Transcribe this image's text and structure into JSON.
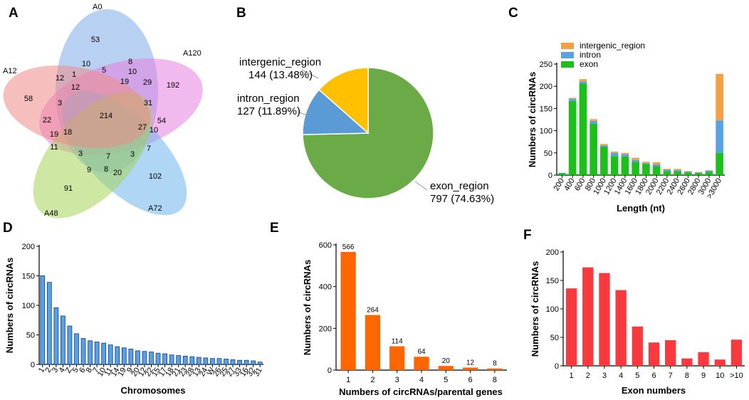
{
  "chart_data": [
    {
      "panel": "A",
      "type": "venn",
      "sets": [
        "A0",
        "A120",
        "A72",
        "A48",
        "A12"
      ],
      "regions": [
        {
          "sets": [
            "A0"
          ],
          "value": 53
        },
        {
          "sets": [
            "A120"
          ],
          "value": 192
        },
        {
          "sets": [
            "A72"
          ],
          "value": 102
        },
        {
          "sets": [
            "A48"
          ],
          "value": 91
        },
        {
          "sets": [
            "A12"
          ],
          "value": 58
        },
        {
          "sets": [
            "A0",
            "A12"
          ],
          "value": 10
        },
        {
          "sets": [
            "A0",
            "A120"
          ],
          "value": 8
        },
        {
          "sets": [
            "A12",
            "A0",
            "A120"
          ],
          "value": 12
        },
        {
          "sets": [
            "A0",
            "A12",
            "A72"
          ],
          "value": 1
        },
        {
          "sets": [
            "A0",
            "A120",
            "A12",
            "A72"
          ],
          "value": 5
        },
        {
          "sets": [
            "A0",
            "A120",
            "A72"
          ],
          "value": 10
        },
        {
          "sets": [
            "A0",
            "A12",
            "A120",
            "A48"
          ],
          "value": 12
        },
        {
          "sets": [
            "A0",
            "A120",
            "A72",
            "A48"
          ],
          "value": 19
        },
        {
          "sets": [
            "A120",
            "A72"
          ],
          "value": 29
        },
        {
          "sets": [
            "A12",
            "A120"
          ],
          "value": 3
        },
        {
          "sets": [
            "A120",
            "A72",
            "A12"
          ],
          "value": 31
        },
        {
          "sets": [
            "A0",
            "A120",
            "A72",
            "A48",
            "A12"
          ],
          "value": 214
        },
        {
          "sets": [
            "A120",
            "A72",
            "A48",
            "A12"
          ],
          "value": 27
        },
        {
          "sets": [
            "A120",
            "A72",
            "A48"
          ],
          "value": 10
        },
        {
          "sets": [
            "A72",
            "A120",
            "A48"
          ],
          "value": 54
        },
        {
          "sets": [
            "A12",
            "A48",
            "A0"
          ],
          "value": 22
        },
        {
          "sets": [
            "A12",
            "A48",
            "A0",
            "A120"
          ],
          "value": 18
        },
        {
          "sets": [
            "A12",
            "A48",
            "A120"
          ],
          "value": 19
        },
        {
          "sets": [
            "A12",
            "A48"
          ],
          "value": 11
        },
        {
          "sets": [
            "A48",
            "A12",
            "A72"
          ],
          "value": 3
        },
        {
          "sets": [
            "A48",
            "A72",
            "A0"
          ],
          "value": 7
        },
        {
          "sets": [
            "A48",
            "A72",
            "A12",
            "A0"
          ],
          "value": 3
        },
        {
          "sets": [
            "A72",
            "A120",
            "A0"
          ],
          "value": 7
        },
        {
          "sets": [
            "A48",
            "A0"
          ],
          "value": 9
        },
        {
          "sets": [
            "A48",
            "A72",
            "A12"
          ],
          "value": 8
        },
        {
          "sets": [
            "A48",
            "A72"
          ],
          "value": 20
        }
      ]
    },
    {
      "panel": "B",
      "type": "pie",
      "slices": [
        {
          "name": "exon_region",
          "value": 797,
          "label_text": "797 (74.63%)",
          "color": "#6aaa47"
        },
        {
          "name": "intron_region",
          "value": 127,
          "label_text": "127 (11.89%)",
          "color": "#5b9bd5"
        },
        {
          "name": "intergenic_region",
          "value": 144,
          "label_text": "144 (13.48%)",
          "color": "#ffc000"
        }
      ]
    },
    {
      "panel": "C",
      "type": "bar",
      "stacked": true,
      "categories": [
        "200",
        "400",
        "600",
        "800",
        "1000",
        "1200",
        "1400",
        "1600",
        "1800",
        "2000",
        "2200",
        "2400",
        "2600",
        "2800",
        "3000",
        ">3000"
      ],
      "series": [
        {
          "name": "exon",
          "color": "#1bc01b",
          "values": [
            4,
            167,
            206,
            116,
            64,
            43,
            42,
            30,
            25,
            20,
            9,
            8,
            6,
            5,
            7,
            50
          ]
        },
        {
          "name": "intron",
          "color": "#5aa1e3",
          "values": [
            1,
            5,
            5,
            6,
            3,
            7,
            5,
            4,
            2,
            4,
            3,
            3,
            2,
            1,
            3,
            73
          ]
        },
        {
          "name": "intergenic_region",
          "color": "#f3a144",
          "values": [
            0,
            2,
            5,
            4,
            3,
            3,
            3,
            5,
            3,
            5,
            2,
            3,
            1,
            1,
            1,
            105
          ]
        }
      ],
      "xlabel": "Length (nt)",
      "ylabel": "Numbers of circRNAs",
      "ylim": [
        0,
        250
      ],
      "yticks": [
        0,
        50,
        100,
        150,
        200,
        250
      ],
      "legend": [
        "intergenic_region",
        "intron",
        "exon"
      ]
    },
    {
      "panel": "D",
      "type": "bar",
      "color": "#5aa1e3",
      "categories": [
        "1",
        "2",
        "3",
        "4",
        "Z",
        "5",
        "6",
        "8",
        "7",
        "10",
        "11",
        "14",
        "19",
        "9",
        "20",
        "12",
        "22",
        "15",
        "17",
        "18",
        "21",
        "23",
        "28",
        "13",
        "24",
        "W",
        "26",
        "25",
        "27",
        "33",
        "16",
        "32",
        "31"
      ],
      "values": [
        150,
        139,
        96,
        82,
        65,
        52,
        44,
        40,
        38,
        36,
        33,
        30,
        28,
        26,
        23,
        22,
        21,
        19,
        18,
        16,
        15,
        14,
        13,
        12,
        11,
        10,
        10,
        9,
        8,
        7,
        7,
        6,
        4
      ],
      "xlabel": "Chromosomes",
      "ylabel": "Numbers of circRNAs",
      "ylim": [
        0,
        200
      ],
      "yticks": [
        0,
        50,
        100,
        150,
        200
      ]
    },
    {
      "panel": "E",
      "type": "bar",
      "color": "#ff6600",
      "categories": [
        "1",
        "2",
        "3",
        "4",
        "5",
        "6",
        "8"
      ],
      "values": [
        566,
        264,
        114,
        64,
        20,
        12,
        8
      ],
      "data_labels": [
        "566",
        "264",
        "114",
        "64",
        "20",
        "12",
        "8"
      ],
      "xlabel": "Numbers of circRNAs/parental genes",
      "ylabel": "Numbers of circRNAs",
      "ylim": [
        0,
        600
      ],
      "yticks": [
        0,
        200,
        400,
        600
      ]
    },
    {
      "panel": "F",
      "type": "bar",
      "color": "#f8393e",
      "categories": [
        "1",
        "2",
        "3",
        "4",
        "5",
        "6",
        "7",
        "8",
        "9",
        "10",
        ">10"
      ],
      "values": [
        136,
        173,
        163,
        133,
        69,
        41,
        45,
        13,
        24,
        11,
        46
      ],
      "xlabel": "Exon numbers",
      "ylabel": "Numbers of circRNAs",
      "ylim": [
        0,
        200
      ],
      "yticks": [
        0,
        50,
        100,
        150,
        200
      ]
    }
  ],
  "panels": {
    "a": "A",
    "b": "B",
    "c": "C",
    "d": "D",
    "e": "E",
    "f": "F"
  },
  "venn": {
    "set_labels": {
      "A0": "A0",
      "A120": "A120",
      "A72": "A72",
      "A48": "A48",
      "A12": "A12"
    },
    "colors": {
      "A0": "#7eaae6",
      "A120": "#e580e0",
      "A72": "#70b5ef",
      "A48": "#a6d65a",
      "A12": "#ef8a88"
    }
  },
  "pie": {
    "labels": {
      "intergenic_name": "intergenic_region",
      "intergenic_value": "144 (13.48%)",
      "intron_name": "intron_region",
      "intron_value": "127 (11.89%)",
      "exon_name": "exon_region",
      "exon_value": "797 (74.63%)"
    }
  }
}
